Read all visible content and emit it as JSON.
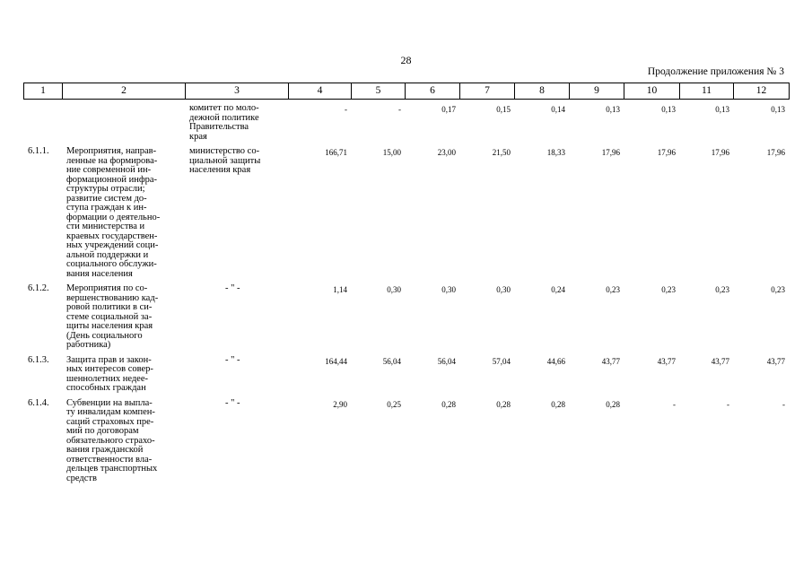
{
  "page": {
    "number": "28",
    "continuation": "Продолжение приложения № 3"
  },
  "columns": [
    "1",
    "2",
    "3",
    "4",
    "5",
    "6",
    "7",
    "8",
    "9",
    "10",
    "11",
    "12"
  ],
  "rows": [
    {
      "index": "",
      "name": "",
      "executor": "комитет по моло-\nдежной политике\nПравительства\nкрая",
      "values": [
        "-",
        "-",
        "0,17",
        "0,15",
        "0,14",
        "0,13",
        "0,13",
        "0,13",
        "0,13"
      ]
    },
    {
      "index": "6.1.1.",
      "name": "Мероприятия, направ-\nленные на формирова-\nние современной ин-\nформационной инфра-\nструктуры отрасли;\nразвитие систем до-\nступа граждан к ин-\nформации о деятельно-\nсти министерства и\nкраевых государствен-\nных учреждений соци-\nальной поддержки и\nсоциального обслужи-\nвания населения",
      "executor": "министерство со-\nциальной защиты\nнаселения края",
      "values": [
        "166,71",
        "15,00",
        "23,00",
        "21,50",
        "18,33",
        "17,96",
        "17,96",
        "17,96",
        "17,96"
      ]
    },
    {
      "index": "6.1.2.",
      "name": "Мероприятия по со-\nвершенствованию кад-\nровой политики в си-\nстеме социальной за-\nщиты населения края\n(День социального\nработника)",
      "executor": "- \" -",
      "values": [
        "1,14",
        "0,30",
        "0,30",
        "0,30",
        "0,24",
        "0,23",
        "0,23",
        "0,23",
        "0,23"
      ]
    },
    {
      "index": "6.1.3.",
      "name": "Защита прав и закон-\nных интересов совер-\nшеннолетних недее-\nспособных граждан",
      "executor": "- \" -",
      "values": [
        "164,44",
        "56,04",
        "56,04",
        "57,04",
        "44,66",
        "43,77",
        "43,77",
        "43,77",
        "43,77"
      ]
    },
    {
      "index": "6.1.4.",
      "name": "Субвенции на выпла-\nту инвалидам компен-\nсаций страховых пре-\nмий по договорам\nобязательного страхо-\nвания гражданской\nответственности вла-\nдельцев транспортных\nсредств",
      "executor": "- \" -",
      "values": [
        "2,90",
        "0,25",
        "0,28",
        "0,28",
        "0,28",
        "0,28",
        "-",
        "-",
        "-"
      ]
    }
  ]
}
